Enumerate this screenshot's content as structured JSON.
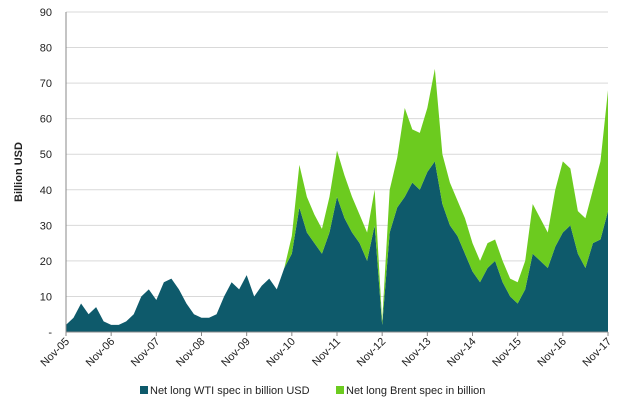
{
  "chart_data": {
    "type": "stacked-area",
    "y_label": "Billion USD",
    "categories": [
      "Nov-05",
      null,
      null,
      null,
      null,
      null,
      "Nov-06",
      null,
      null,
      null,
      null,
      null,
      "Nov-07",
      null,
      null,
      null,
      null,
      null,
      "Nov-08",
      null,
      null,
      null,
      null,
      null,
      "Nov-09",
      null,
      null,
      null,
      null,
      null,
      "Nov-10",
      null,
      null,
      null,
      null,
      null,
      "Nov-11",
      null,
      null,
      null,
      null,
      null,
      "Nov-12",
      null,
      null,
      null,
      null,
      null,
      "Nov-13",
      null,
      null,
      null,
      null,
      null,
      "Nov-14",
      null,
      null,
      null,
      null,
      null,
      "Nov-15",
      null,
      null,
      null,
      null,
      null,
      "Nov-16",
      null,
      null,
      null,
      null,
      null,
      "Nov-17"
    ],
    "series": [
      {
        "name": "Net long WTI spec in billion USD",
        "color": "#0e5a6b",
        "values": [
          2,
          4,
          8,
          5,
          7,
          3,
          2,
          2,
          3,
          5,
          10,
          12,
          9,
          14,
          15,
          12,
          8,
          5,
          4,
          4,
          5,
          10,
          14,
          12,
          16,
          10,
          13,
          15,
          12,
          18,
          22,
          35,
          28,
          25,
          22,
          28,
          38,
          32,
          28,
          25,
          20,
          30,
          2,
          28,
          35,
          38,
          42,
          40,
          45,
          48,
          36,
          30,
          27,
          22,
          17,
          14,
          18,
          20,
          14,
          10,
          8,
          12,
          22,
          20,
          18,
          24,
          28,
          30,
          22,
          18,
          25,
          26,
          34
        ]
      },
      {
        "name": "Net long Brent spec in billion",
        "color": "#6ccb1f",
        "values": [
          0,
          0,
          0,
          0,
          0,
          0,
          0,
          0,
          0,
          0,
          0,
          0,
          0,
          0,
          0,
          0,
          0,
          0,
          0,
          0,
          0,
          0,
          0,
          0,
          0,
          0,
          0,
          0,
          0,
          0,
          5,
          12,
          10,
          8,
          7,
          10,
          13,
          12,
          10,
          8,
          8,
          10,
          1,
          12,
          14,
          25,
          15,
          16,
          18,
          26,
          14,
          12,
          10,
          10,
          8,
          6,
          7,
          6,
          6,
          5,
          6,
          8,
          14,
          12,
          10,
          16,
          20,
          16,
          12,
          14,
          15,
          22,
          34
        ]
      }
    ],
    "ylim": [
      0,
      90
    ],
    "yticks": [
      {
        "value": 0,
        "label": "-"
      },
      10,
      20,
      30,
      40,
      50,
      60,
      70,
      80,
      90
    ],
    "grid": true
  }
}
